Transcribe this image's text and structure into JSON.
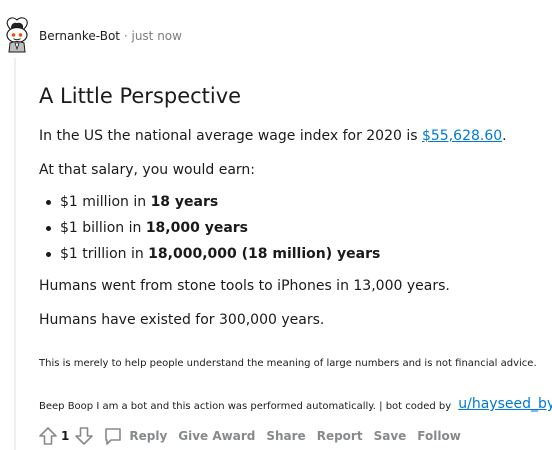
{
  "comment": {
    "author": "Bernanke-Bot",
    "separator": "·",
    "time": "just now",
    "title": "A Little Perspective",
    "intro_text": "In the US the national average wage index for 2020 is ",
    "wage_link": "$55,628.60",
    "intro_end": ".",
    "salary_line": "At that salary, you would earn:",
    "earnings": [
      {
        "prefix": "$1 million in ",
        "amount": "18 years"
      },
      {
        "prefix": "$1 billion in ",
        "amount": "18,000 years"
      },
      {
        "prefix": "$1 trillion in ",
        "amount": "18,000,000 (18 million) years"
      }
    ],
    "fact_1": "Humans went from stone tools to iPhones in 13,000 years.",
    "fact_2": "Humans have existed for 300,000 years.",
    "disclaimer": "This is merely to help people understand the meaning of large numbers and is not financial advice.",
    "bot_note": "Beep Boop I am a bot and this action was performed automatically. | bot coded by",
    "bot_author": "u/hayseed_byte"
  },
  "actions": {
    "vote_count": "1",
    "reply": "Reply",
    "give_award": "Give Award",
    "share": "Share",
    "report": "Report",
    "save": "Save",
    "follow": "Follow"
  },
  "icons": {
    "upvote": "arrow-up-icon",
    "downvote": "arrow-down-icon",
    "reply": "comment-bubble-icon",
    "avatar": "snoo-avatar-icon"
  },
  "colors": {
    "link": "#0079d3",
    "muted": "#878a8c",
    "text": "#1a1a1b",
    "thread_line": "#edeff1"
  }
}
